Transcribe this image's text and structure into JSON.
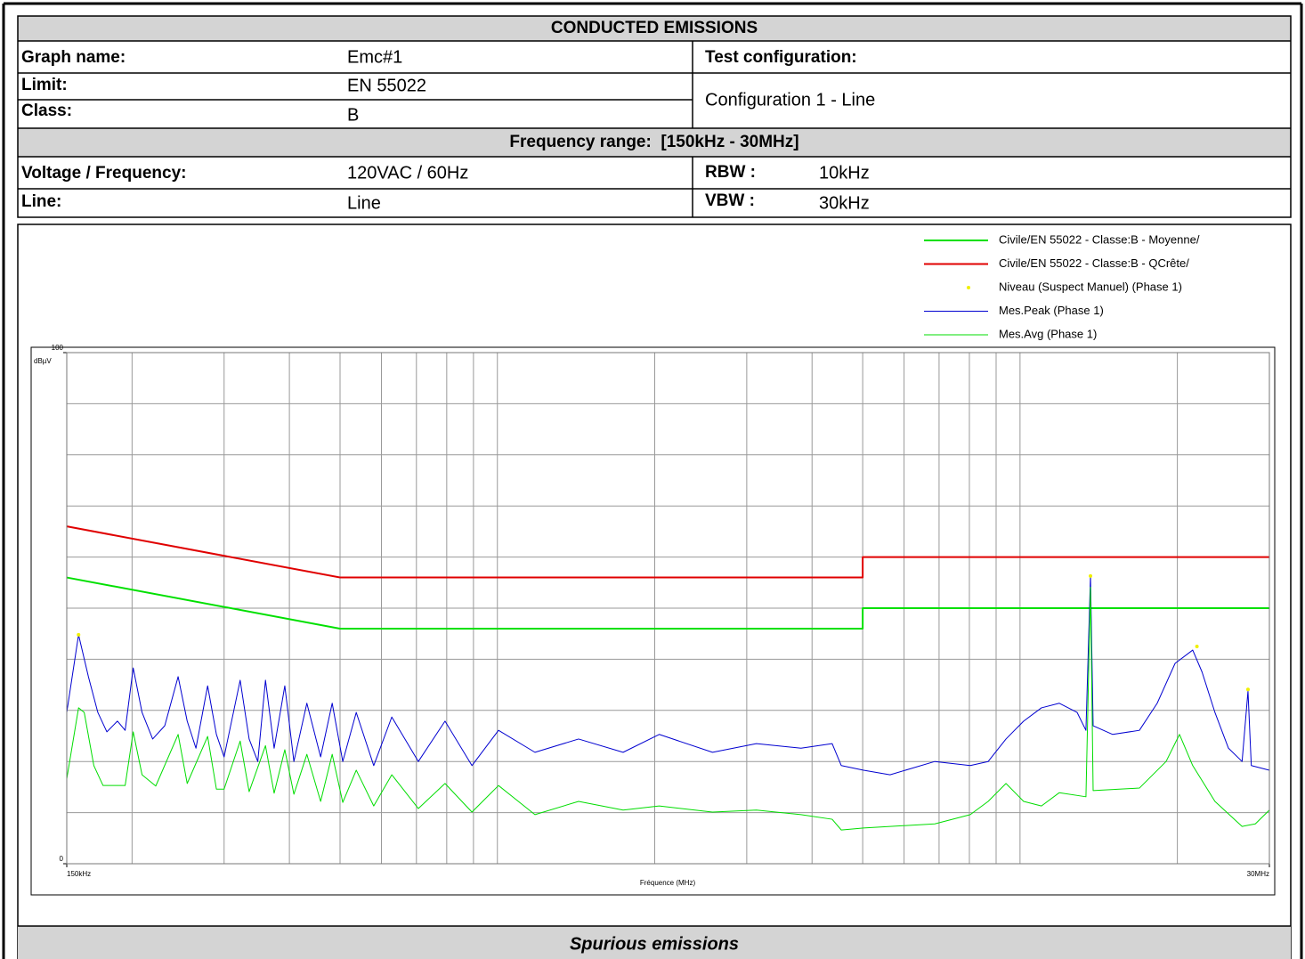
{
  "header": {
    "title": "CONDUCTED EMISSIONS",
    "graph_name": {
      "label": "Graph name:",
      "value": "Emc#1"
    },
    "test_configuration": {
      "label": "Test configuration:",
      "value": "Configuration 1 - Line"
    },
    "limit": {
      "label": "Limit:",
      "value": "EN 55022"
    },
    "class": {
      "label": "Class:",
      "value": "B"
    },
    "frequency_range": "Frequency range:  [150kHz - 30MHz]",
    "voltage_frequency": {
      "label": "Voltage / Frequency:",
      "value": "120VAC / 60Hz"
    },
    "line": {
      "label": "Line:",
      "value": "Line"
    },
    "rbw": {
      "label": "RBW :",
      "value": "10kHz"
    },
    "vbw": {
      "label": "VBW :",
      "value": "30kHz"
    }
  },
  "chart_data": {
    "type": "line",
    "xlabel": "Fréquence (MHz)",
    "ylabel": "dBµV",
    "xscale": "log",
    "xlim": [
      0.15,
      30
    ],
    "xticks": [
      {
        "value": 0.15,
        "label": "150kHz"
      },
      {
        "value": 30,
        "label": "30MHz"
      }
    ],
    "xgrid": [
      0.2,
      0.3,
      0.4,
      0.5,
      0.6,
      0.7,
      0.8,
      0.9,
      1,
      2,
      3,
      4,
      5,
      6,
      7,
      8,
      9,
      10,
      20
    ],
    "ylim": [
      0,
      100
    ],
    "yticks": [
      0,
      100
    ],
    "ygrid": [
      10,
      20,
      30,
      40,
      50,
      60,
      70,
      80,
      90
    ],
    "grid": true,
    "legend": "top-right",
    "series": [
      {
        "name": "Civile/EN 55022 - Classe:B - Moyenne/",
        "color": "#00e000",
        "width": 2,
        "mode": "line",
        "x": [
          0.15,
          0.5,
          5,
          5,
          30
        ],
        "values": [
          56,
          46,
          46,
          50,
          50
        ]
      },
      {
        "name": "Civile/EN 55022 - Classe:B - QCrête/",
        "color": "#e00000",
        "width": 2,
        "mode": "line",
        "x": [
          0.15,
          0.5,
          5,
          5,
          30
        ],
        "values": [
          66,
          56,
          56,
          60,
          60
        ]
      },
      {
        "name": "Niveau (Suspect Manuel) (Phase 1)",
        "color": "#f0f000",
        "mode": "points",
        "x": [
          0.158,
          13.64,
          21.8,
          27.3
        ],
        "values": [
          44.8,
          56.3,
          42.5,
          34.1
        ]
      },
      {
        "name": "Mes.Peak (Phase 1)",
        "color": "#0000d0",
        "width": 1,
        "mode": "line",
        "x": [
          0.15,
          0.158,
          0.165,
          0.172,
          0.179,
          0.1875,
          0.194,
          0.201,
          0.209,
          0.219,
          0.231,
          0.245,
          0.255,
          0.265,
          0.279,
          0.29,
          0.3,
          0.322,
          0.335,
          0.348,
          0.36,
          0.374,
          0.392,
          0.408,
          0.432,
          0.459,
          0.483,
          0.506,
          0.537,
          0.58,
          0.628,
          0.706,
          0.794,
          0.894,
          1.005,
          1.18,
          1.43,
          1.74,
          2.04,
          2.58,
          3.13,
          3.81,
          4.37,
          4.55,
          5.02,
          5.64,
          6.87,
          8.03,
          8.69,
          9.4,
          10.16,
          10.99,
          11.89,
          12.86,
          13.37,
          13.64,
          13.8,
          15.04,
          16.92,
          18.3,
          19.8,
          21.4,
          22.3,
          23.6,
          25.05,
          26.6,
          27.3,
          27.7,
          30
        ],
        "values": [
          29.6,
          44.8,
          36.6,
          29.6,
          25.8,
          27.9,
          26.1,
          38.3,
          29.6,
          24.4,
          27.0,
          36.6,
          27.9,
          22.6,
          34.8,
          25.3,
          20.9,
          35.9,
          24.4,
          20.0,
          35.9,
          22.6,
          34.8,
          20.0,
          31.4,
          20.9,
          31.4,
          20.0,
          29.6,
          19.2,
          28.7,
          20.0,
          27.9,
          19.2,
          26.1,
          21.8,
          24.4,
          21.8,
          25.3,
          21.8,
          23.5,
          22.6,
          23.5,
          19.2,
          18.3,
          17.4,
          20.0,
          19.2,
          20.0,
          24.4,
          27.9,
          30.5,
          31.4,
          29.6,
          26.1,
          56.3,
          27.0,
          25.3,
          26.1,
          31.4,
          39.2,
          41.8,
          37.5,
          29.6,
          22.6,
          20.0,
          33.8,
          19.2,
          18.3
        ]
      },
      {
        "name": "Mes.Avg (Phase 1)",
        "color": "#00dd00",
        "width": 1,
        "mode": "line",
        "x": [
          0.15,
          0.158,
          0.162,
          0.169,
          0.176,
          0.194,
          0.201,
          0.209,
          0.222,
          0.245,
          0.255,
          0.279,
          0.29,
          0.3,
          0.322,
          0.335,
          0.36,
          0.374,
          0.392,
          0.408,
          0.432,
          0.459,
          0.483,
          0.506,
          0.537,
          0.58,
          0.628,
          0.706,
          0.794,
          0.894,
          1.005,
          1.18,
          1.43,
          1.74,
          2.04,
          2.58,
          3.13,
          3.81,
          4.37,
          4.55,
          5.02,
          6.87,
          8.03,
          8.69,
          9.4,
          10.16,
          10.99,
          11.89,
          13.37,
          13.64,
          13.8,
          16.92,
          19.03,
          20.19,
          21.4,
          23.6,
          26.6,
          28.2,
          30
        ],
        "values": [
          16.6,
          30.5,
          29.6,
          19.2,
          15.3,
          15.3,
          25.8,
          17.4,
          15.2,
          25.3,
          15.7,
          24.9,
          14.6,
          14.6,
          24.0,
          14.1,
          23.1,
          13.8,
          22.3,
          13.6,
          21.4,
          12.2,
          21.4,
          12.0,
          18.3,
          11.3,
          17.4,
          10.8,
          15.7,
          10.1,
          15.3,
          9.6,
          12.2,
          10.5,
          11.3,
          10.1,
          10.5,
          9.6,
          8.7,
          6.6,
          7.0,
          7.8,
          9.6,
          12.2,
          15.7,
          12.2,
          11.3,
          13.9,
          13.1,
          54.1,
          14.3,
          14.8,
          20.0,
          25.3,
          19.2,
          12.2,
          7.3,
          7.8,
          10.5
        ]
      }
    ]
  },
  "footer": {
    "title": "Spurious emissions"
  }
}
